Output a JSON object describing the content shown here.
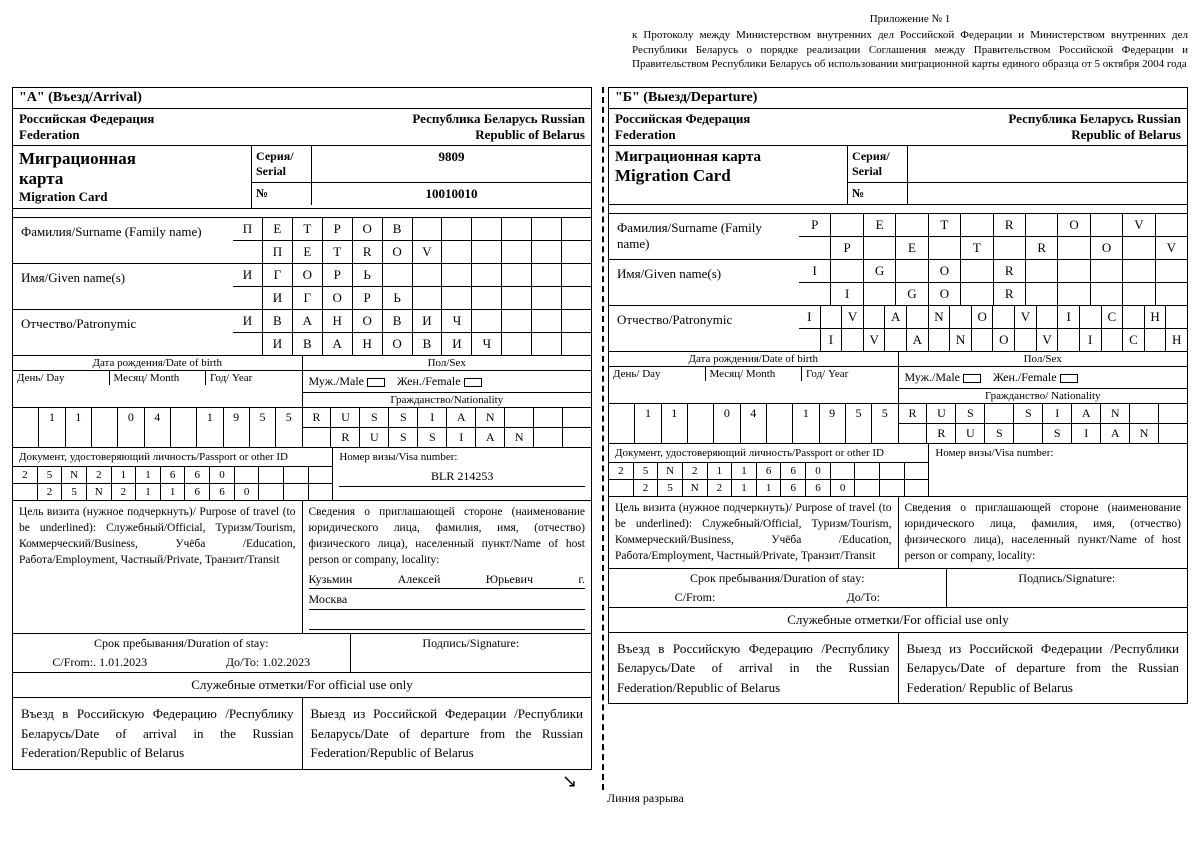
{
  "appendix": {
    "title": "Приложение № 1",
    "text": "к Протоколу между Министерством внутренних дел Российской Федерации и Министерством внутренних дел Республики Беларусь о порядке реализации Соглашения между Правительством Российской Федерации и Правительством Республики Беларусь об использовании миграционной карты единого образца от 5 октября 2004 года"
  },
  "a": {
    "hdr": "\"А\" (Въезд/Arrival)",
    "fed_left": "Российская Федерация",
    "fed_right": "Республика Беларусь Russian",
    "fed2_left": "Federation",
    "fed2_right": "Republic of Belarus",
    "mig_ru1": "Миграционная",
    "mig_ru2": "карта",
    "mig_en": "Migration Card",
    "serial_lbl": "Серия/ Serial",
    "serial": "9809",
    "num_lbl": "№",
    "num": "10010010",
    "surname_lbl": "Фамилия/Surname        (Family name)",
    "surname1": [
      "П",
      "Е",
      "Т",
      "Р",
      "О",
      "В",
      "",
      "",
      "",
      "",
      "",
      ""
    ],
    "surname2": [
      "",
      "П",
      "E",
      "T",
      "R",
      "O",
      "V",
      "",
      "",
      "",
      "",
      ""
    ],
    "given_lbl": "Имя/Given name(s)",
    "given1": [
      "И",
      "Г",
      "О",
      "Р",
      "Ь",
      "",
      "",
      "",
      "",
      "",
      "",
      ""
    ],
    "given2": [
      "",
      "И",
      "Г",
      "О",
      "Р",
      "Ь",
      "",
      "",
      "",
      "",
      "",
      ""
    ],
    "patr_lbl": "Отчество/Patronymic",
    "patr1": [
      "И",
      "В",
      "А",
      "Н",
      "О",
      "В",
      "И",
      "Ч",
      "",
      "",
      "",
      ""
    ],
    "patr2": [
      "",
      "И",
      "В",
      "А",
      "Н",
      "О",
      "В",
      "И",
      "Ч",
      "",
      "",
      ""
    ],
    "dob_hdr": "Дата рождения/Date of birth",
    "day_lbl": "День/ Day",
    "month_lbl": "Месяц/ Month",
    "year_lbl": "Год/ Year",
    "sex_hdr": "Пол/Sex",
    "male": "Муж./Male",
    "female": "Жен./Female",
    "nat_hdr": "Гражданство/Nationality",
    "dob_cells": [
      "",
      "1",
      "1",
      "",
      "0",
      "4",
      "",
      "1",
      "9",
      "5",
      "5"
    ],
    "nat1": [
      "R",
      "U",
      "S",
      "S",
      "I",
      "A",
      "N",
      "",
      "",
      ""
    ],
    "nat2": [
      "",
      "R",
      "U",
      "S",
      "S",
      "I",
      "A",
      "N",
      "",
      ""
    ],
    "pass_lbl": "Документ, удостоверяющий личность/Passport or other ID",
    "pass1": [
      "2",
      "5",
      "N",
      "2",
      "1",
      "1",
      "6",
      "6",
      "0",
      "",
      "",
      "",
      ""
    ],
    "pass2": [
      "",
      "2",
      "5",
      "N",
      "2",
      "1",
      "1",
      "6",
      "6",
      "0",
      "",
      "",
      ""
    ],
    "visa_lbl": "Номер визы/Visa number:",
    "visa": "BLR 214253",
    "purpose_lbl": "Цель визита (нужное подчеркнуть)/ Purpose of travel (to be underlined): Служебный/Official, Туризм/Tourism, Коммерческий/Business, Учёба /Education, Работа/Employment, Частный/Private, Транзит/Transit",
    "host_lbl": "Сведения о приглашающей стороне (наименование юридического лица, фамилия, имя, (отчество) физического лица), населенный пункт/Name of host person or company, locality:",
    "host_val_1": "Кузьмин",
    "host_val_2": "Алексей",
    "host_val_3": "Юрьевич",
    "host_val_4": "г.",
    "host_val2": "Москва",
    "stay_hdr": "Срок пребывания/Duration of stay:",
    "from_lbl": "С/From:.    1.01.2023",
    "to_lbl": "До/То: 1.02.2023",
    "sig_lbl": "Подпись/Signature:",
    "official": "Служебные отметки/For official use only",
    "entry_lbl": "Въезд в Российскую Федерацию /Республику Беларусь/Date of arrival in the Russian Federation/Republic of Belarus",
    "exit_lbl": "Выезд из Российской Федерации /Республики Беларусь/Date of departure from the Russian Federation/Republic of Belarus"
  },
  "b": {
    "hdr": "\"Б\" (Выезд/Departure)",
    "fed_left": "Российская Федерация",
    "fed_right": "Республика Беларусь Russian",
    "fed2_left": "Federation",
    "fed2_right": "Republic of Belarus",
    "mig_ru1": "Миграционная карта",
    "mig_en": "Migration Card",
    "serial_lbl": "Серия/ Serial",
    "serial": "",
    "num_lbl": "№",
    "num": "",
    "surname_lbl": "Фамилия/Surname   (Family name)",
    "surname1": [
      "P",
      "",
      "E",
      "",
      "T",
      "",
      "R",
      "",
      "O",
      "",
      "V",
      ""
    ],
    "surname2": [
      "",
      "P",
      "",
      "E",
      "",
      "T",
      "",
      "R",
      "",
      "O",
      "",
      "V"
    ],
    "given_lbl": "Имя/Given name(s)",
    "given1": [
      "I",
      "",
      "G",
      "",
      "O",
      "",
      "R",
      "",
      "",
      "",
      "",
      ""
    ],
    "given2": [
      "",
      "I",
      "",
      "G",
      "O",
      "",
      "R",
      "",
      "",
      "",
      "",
      ""
    ],
    "patr_lbl": "Отчество/Patronymic",
    "patr1": [
      "I",
      "",
      "V",
      "",
      "A",
      "",
      "N",
      "",
      "O",
      "",
      "V",
      "",
      "I",
      "",
      "C",
      "",
      "H",
      ""
    ],
    "patr2": [
      "",
      "I",
      "",
      "V",
      "",
      "A",
      "",
      "N",
      "",
      "O",
      "",
      "V",
      "",
      "I",
      "",
      "C",
      "",
      "H"
    ],
    "dob_hdr": "Дата рождения/Date of birth",
    "day_lbl": "День/ Day",
    "month_lbl": "Месяц/ Month",
    "year_lbl": "Год/ Year",
    "sex_hdr": "Пол/Sex",
    "male": "Муж./Male",
    "female": "Жен./Female",
    "nat_hdr": "Гражданство/ Nationality",
    "dob_cells": [
      "",
      "1",
      "1",
      "",
      "0",
      "4",
      "",
      "1",
      "9",
      "5",
      "5"
    ],
    "nat1": [
      "R",
      "U",
      "S",
      "",
      "S",
      "I",
      "A",
      "N",
      "",
      ""
    ],
    "nat2": [
      "",
      "R",
      "U",
      "S",
      "",
      "S",
      "I",
      "A",
      "N",
      ""
    ],
    "pass_lbl": "Документ, удостоверяющий личность/Passport or other ID",
    "pass1": [
      "2",
      "5",
      "N",
      "2",
      "1",
      "1",
      "6",
      "6",
      "0",
      "",
      "",
      "",
      ""
    ],
    "pass2": [
      "",
      "2",
      "5",
      "N",
      "2",
      "1",
      "1",
      "6",
      "6",
      "0",
      "",
      "",
      ""
    ],
    "visa_lbl": "Номер визы/Visa number:",
    "purpose_lbl": "Цель визита (нужное подчеркнуть)/ Purpose of travel (to be underlined): Служебный/Official, Туризм/Tourism, Коммерческий/Business, Учёба /Education, Работа/Employment, Частный/Private, Транзит/Transit",
    "host_lbl": "Сведения о приглашающей стороне (наименование юридического лица, фамилия, имя, (отчество) физического лица), населенный пункт/Name of host person or company, locality:",
    "stay_hdr": "Срок пребывания/Duration of stay:",
    "from_lbl": "С/From:",
    "to_lbl": "До/То:",
    "sig_lbl": "Подпись/Signature:",
    "official": "Служебные отметки/For official use only",
    "entry_lbl": "Въезд в Российскую Федерацию /Республику Беларусь/Date of arrival in the Russian Federation/Republic of Belarus",
    "exit_lbl": "Выезд из Российской Федерации /Республики Беларусь/Date of departure from the Russian Federation/ Republic of Belarus"
  },
  "tear": "Линия разрыва"
}
